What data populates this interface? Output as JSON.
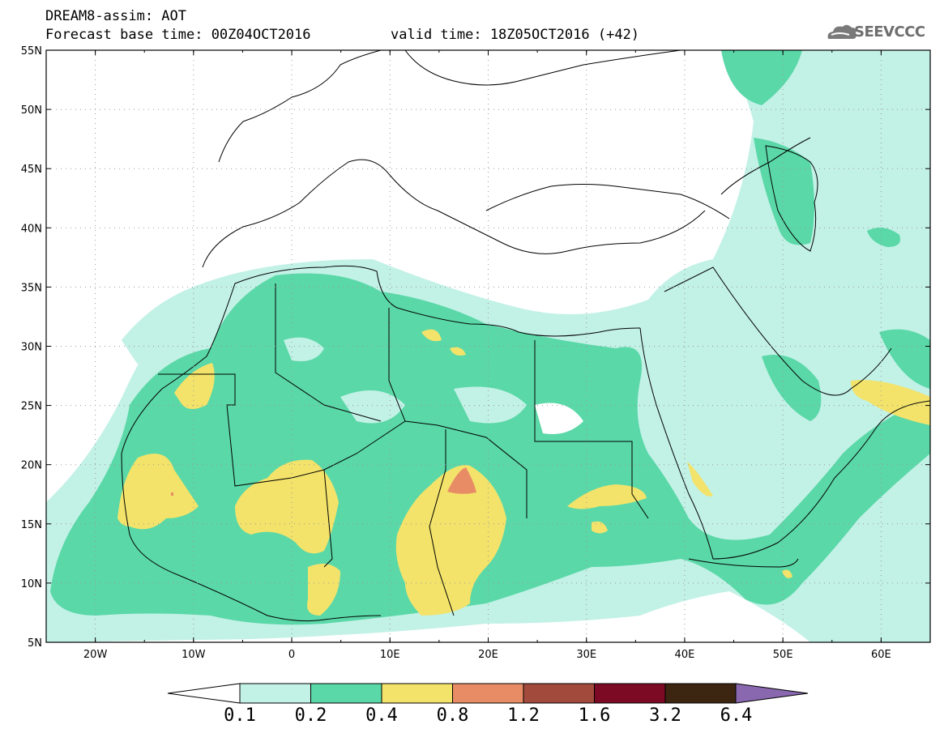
{
  "header": {
    "line1": "DREAM8-assim: AOT",
    "line2": "Forecast base time: 00Z04OCT2016",
    "line3": "valid time: 18Z05OCT2016 (+42)",
    "logo": "SEEVCCC"
  },
  "map": {
    "lon_range": [
      -25,
      65
    ],
    "lat_range": [
      5,
      55
    ],
    "lat_ticks": [
      "55N",
      "50N",
      "45N",
      "40N",
      "35N",
      "30N",
      "25N",
      "20N",
      "15N",
      "10N",
      "5N"
    ],
    "lon_ticks": [
      "20W",
      "10W",
      "0",
      "10E",
      "20E",
      "30E",
      "40E",
      "50E",
      "60E"
    ],
    "projection": "cylindrical equidistant",
    "grid": "dotted"
  },
  "colorbar": {
    "labels": [
      "0.1",
      "0.2",
      "0.4",
      "0.8",
      "1.2",
      "1.6",
      "3.2",
      "6.4"
    ],
    "colors": [
      "#c2f1e6",
      "#5ad8a8",
      "#f3e36a",
      "#e88c66",
      "#a24a3c",
      "#7c0a25",
      "#3c2612",
      "#8a68b0"
    ],
    "under_color": "#ffffff"
  }
}
